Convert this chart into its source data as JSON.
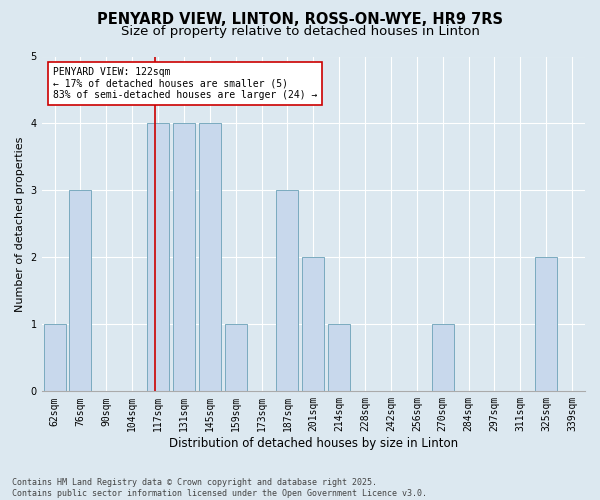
{
  "title_line1": "PENYARD VIEW, LINTON, ROSS-ON-WYE, HR9 7RS",
  "title_line2": "Size of property relative to detached houses in Linton",
  "xlabel": "Distribution of detached houses by size in Linton",
  "ylabel": "Number of detached properties",
  "categories": [
    "62sqm",
    "76sqm",
    "90sqm",
    "104sqm",
    "117sqm",
    "131sqm",
    "145sqm",
    "159sqm",
    "173sqm",
    "187sqm",
    "201sqm",
    "214sqm",
    "228sqm",
    "242sqm",
    "256sqm",
    "270sqm",
    "284sqm",
    "297sqm",
    "311sqm",
    "325sqm",
    "339sqm"
  ],
  "values": [
    1,
    3,
    0,
    0,
    4,
    4,
    4,
    1,
    0,
    3,
    2,
    1,
    0,
    0,
    0,
    1,
    0,
    0,
    0,
    2,
    0
  ],
  "bar_color": "#c8d8ec",
  "bar_edge_color": "#7aaabf",
  "marker_color": "#cc0000",
  "annotation_box_edge": "#cc0000",
  "ylim": [
    0,
    5
  ],
  "yticks": [
    0,
    1,
    2,
    3,
    4,
    5
  ],
  "background_color": "#dce8f0",
  "plot_background": "#dce8f0",
  "footer_text": "Contains HM Land Registry data © Crown copyright and database right 2025.\nContains public sector information licensed under the Open Government Licence v3.0.",
  "title_fontsize": 10.5,
  "subtitle_fontsize": 9.5,
  "xlabel_fontsize": 8.5,
  "ylabel_fontsize": 8,
  "tick_fontsize": 7,
  "annotation_fontsize": 7,
  "footer_fontsize": 6
}
